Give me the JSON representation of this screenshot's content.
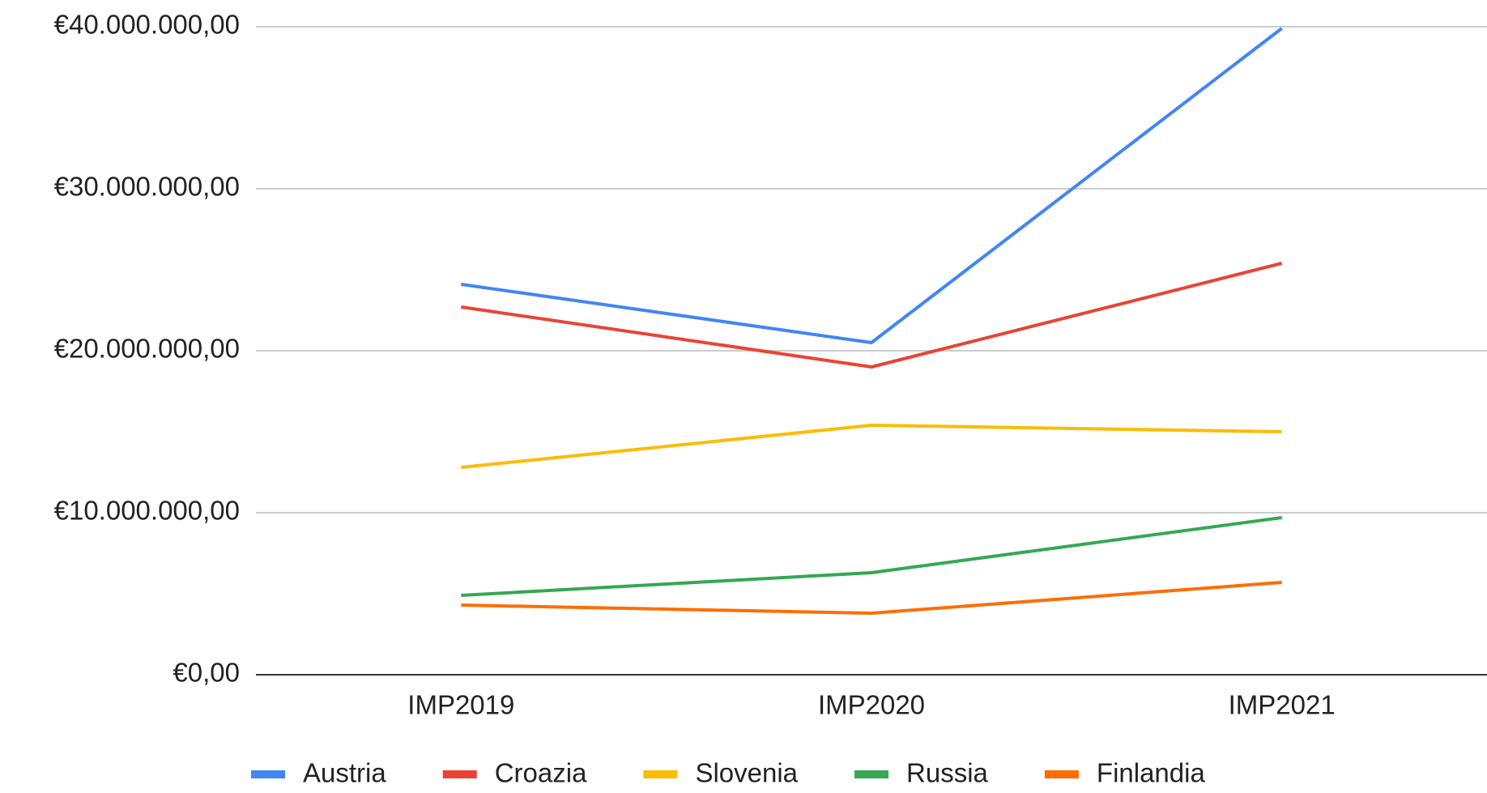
{
  "chart_data": {
    "type": "line",
    "categories": [
      "IMP2019",
      "IMP2020",
      "IMP2021"
    ],
    "series": [
      {
        "name": "Austria",
        "color": "#4285f4",
        "values": [
          24100000,
          20500000,
          39900000
        ]
      },
      {
        "name": "Croazia",
        "color": "#ea4335",
        "values": [
          22700000,
          19000000,
          25400000
        ]
      },
      {
        "name": "Slovenia",
        "color": "#fbbc04",
        "values": [
          12800000,
          15400000,
          15000000
        ]
      },
      {
        "name": "Russia",
        "color": "#34a853",
        "values": [
          4900000,
          6300000,
          9700000
        ]
      },
      {
        "name": "Finlandia",
        "color": "#ff6d01",
        "values": [
          4300000,
          3800000,
          5700000
        ]
      }
    ],
    "ylim": [
      0,
      40000000
    ],
    "yticks": [
      {
        "value": 0,
        "label": "€0,00"
      },
      {
        "value": 10000000,
        "label": "€10.000.000,00"
      },
      {
        "value": 20000000,
        "label": "€20.000.000,00"
      },
      {
        "value": 30000000,
        "label": "€30.000.000,00"
      },
      {
        "value": 40000000,
        "label": "€40.000.000,00"
      }
    ],
    "grid": true,
    "legend": "bottom"
  }
}
